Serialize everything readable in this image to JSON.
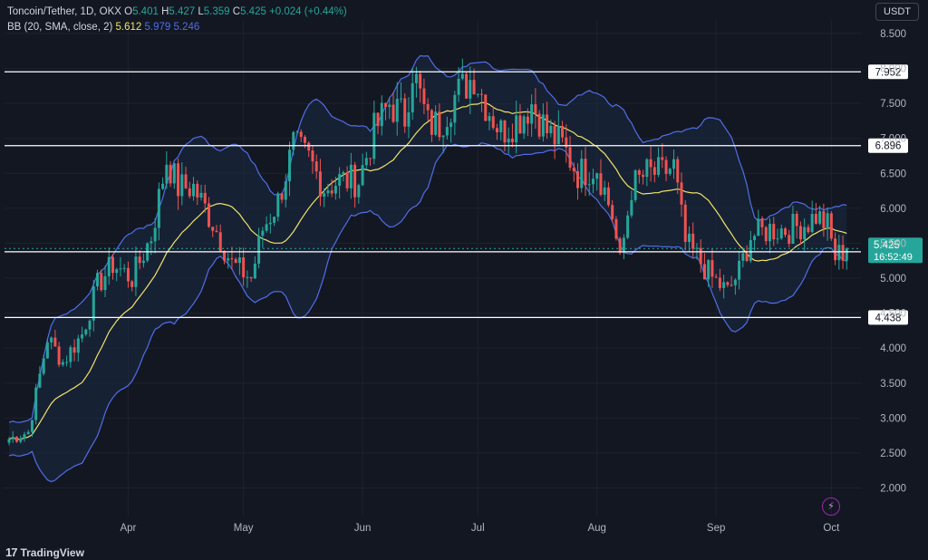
{
  "header": {
    "symbol": "Toncoin/Tether, 1D, OKX",
    "o_label": "O",
    "o_value": "5.401",
    "h_label": "H",
    "h_value": "5.427",
    "l_label": "L",
    "l_value": "5.359",
    "c_label": "C",
    "c_value": "5.425",
    "change": "+0.024 (+0.44%)",
    "indicator": "BB (20, SMA, close, 2)",
    "bb_basis": "5.612",
    "bb_upper": "5.979",
    "bb_lower": "5.246"
  },
  "quote_currency": "USDT",
  "brand": "TradingView",
  "icons": {
    "logo": "tradingview-logo-icon",
    "flash": "lightning-icon"
  },
  "colors": {
    "background": "#131722",
    "up": "#26a69a",
    "down": "#ef5350",
    "bb_basis": "#f0e36a",
    "bb_band": "#4f6ee8",
    "bb_fill": "#1b2a44",
    "hline": "#ffffff",
    "grid": "#1e222d",
    "axis_text": "#b2b5be"
  },
  "chart_data": {
    "type": "candlestick",
    "y_axis": {
      "ticks": [
        "8.500",
        "8.000",
        "7.500",
        "7.000",
        "6.500",
        "6.000",
        "5.500",
        "5.000",
        "4.500",
        "4.000",
        "3.500",
        "3.000",
        "2.500",
        "2.000"
      ],
      "range": [
        1.65,
        8.75
      ]
    },
    "x_axis": {
      "ticks": [
        "Apr",
        "May",
        "Jun",
        "Jul",
        "Aug",
        "Sep",
        "Oct"
      ],
      "range": [
        "2024-03-01",
        "2024-10-10"
      ]
    },
    "horizontal_levels": [
      "7.952",
      "6.896",
      "5.378",
      "4.438"
    ],
    "current_price": {
      "value": "5.425",
      "countdown": "16:52:49"
    },
    "grid": true,
    "series": [
      {
        "kind": "candles",
        "key_points": [
          [
            "2024-03-01",
            2.7
          ],
          [
            "2024-03-06",
            2.8
          ],
          [
            "2024-03-11",
            4.15
          ],
          [
            "2024-03-15",
            3.8
          ],
          [
            "2024-03-20",
            4.2
          ],
          [
            "2024-03-24",
            4.9
          ],
          [
            "2024-03-28",
            5.2
          ],
          [
            "2024-04-02",
            5.0
          ],
          [
            "2024-04-07",
            5.6
          ],
          [
            "2024-04-11",
            6.7
          ],
          [
            "2024-04-14",
            6.3
          ],
          [
            "2024-04-18",
            6.3
          ],
          [
            "2024-04-23",
            5.8
          ],
          [
            "2024-04-28",
            5.2
          ],
          [
            "2024-05-03",
            5.0
          ],
          [
            "2024-05-06",
            5.7
          ],
          [
            "2024-05-10",
            6.1
          ],
          [
            "2024-05-14",
            6.9
          ],
          [
            "2024-05-18",
            6.7
          ],
          [
            "2024-05-22",
            6.3
          ],
          [
            "2024-05-26",
            6.4
          ],
          [
            "2024-05-31",
            6.4
          ],
          [
            "2024-06-04",
            7.1
          ],
          [
            "2024-06-08",
            7.5
          ],
          [
            "2024-06-12",
            7.3
          ],
          [
            "2024-06-14",
            8.0
          ],
          [
            "2024-06-18",
            7.2
          ],
          [
            "2024-06-21",
            7.2
          ],
          [
            "2024-06-25",
            7.6
          ],
          [
            "2024-06-30",
            7.9
          ],
          [
            "2024-07-03",
            7.5
          ],
          [
            "2024-07-07",
            7.1
          ],
          [
            "2024-07-12",
            7.3
          ],
          [
            "2024-07-15",
            7.5
          ],
          [
            "2024-07-19",
            7.1
          ],
          [
            "2024-07-23",
            6.9
          ],
          [
            "2024-07-27",
            6.5
          ],
          [
            "2024-08-01",
            6.6
          ],
          [
            "2024-08-05",
            5.9
          ],
          [
            "2024-08-07",
            5.2
          ],
          [
            "2024-08-10",
            6.3
          ],
          [
            "2024-08-14",
            6.5
          ],
          [
            "2024-08-18",
            6.5
          ],
          [
            "2024-08-21",
            6.6
          ],
          [
            "2024-08-24",
            5.5
          ],
          [
            "2024-08-27",
            5.3
          ],
          [
            "2024-08-31",
            5.0
          ],
          [
            "2024-09-04",
            4.8
          ],
          [
            "2024-09-07",
            5.1
          ],
          [
            "2024-09-10",
            5.6
          ],
          [
            "2024-09-15",
            5.7
          ],
          [
            "2024-09-20",
            5.7
          ],
          [
            "2024-09-25",
            5.8
          ],
          [
            "2024-09-27",
            5.9
          ],
          [
            "2024-09-30",
            5.75
          ],
          [
            "2024-10-02",
            5.3
          ],
          [
            "2024-10-05",
            5.425
          ]
        ]
      },
      {
        "kind": "bollinger_basis",
        "name": "BB (20, SMA, close, 2)"
      },
      {
        "kind": "bollinger_upper"
      },
      {
        "kind": "bollinger_lower"
      }
    ]
  }
}
